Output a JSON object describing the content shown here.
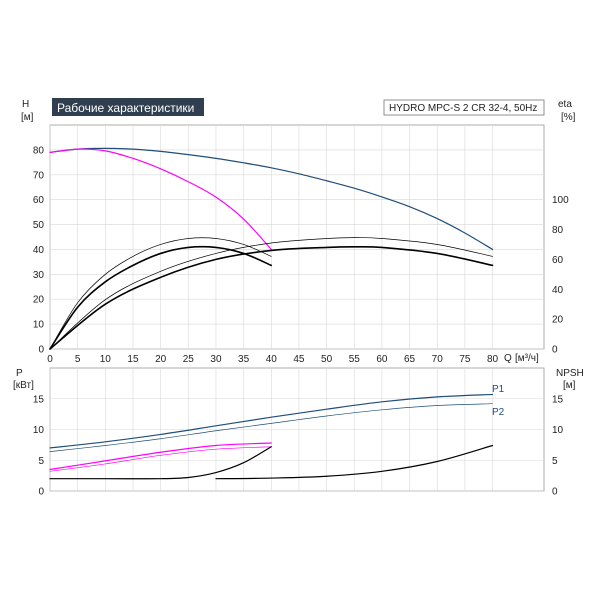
{
  "header": {
    "title": "Рабочие характеристики",
    "product": "HYDRO MPC-S 2 CR 32-4, 50Hz"
  },
  "chart_data": [
    {
      "type": "line",
      "panel": "head-efficiency",
      "x_label": "Q",
      "x_unit": "[м³/ч]",
      "x_ticks": [
        0,
        5,
        10,
        15,
        20,
        25,
        30,
        35,
        40,
        45,
        50,
        55,
        60,
        65,
        70,
        75,
        80
      ],
      "xlim": [
        0,
        80
      ],
      "y_left_label": "H",
      "y_left_unit": "[м]",
      "y_left_ticks": [
        0,
        10,
        20,
        30,
        40,
        50,
        60,
        70,
        80
      ],
      "y_left_lim": [
        0,
        90
      ],
      "y_right_label": "eta",
      "y_right_unit": "[%]",
      "y_right_ticks": [
        0,
        20,
        40,
        60,
        80,
        100
      ],
      "y_right_lim": [
        0,
        150
      ],
      "grid": true,
      "series": [
        {
          "axis": "left",
          "color": "#1f4e79",
          "width": 1.2,
          "x": [
            0,
            5,
            10,
            15,
            20,
            25,
            30,
            35,
            40,
            45,
            50,
            55,
            60,
            65,
            70,
            75,
            80
          ],
          "y": [
            79,
            80.3,
            80.6,
            80.3,
            79.4,
            78.1,
            76.6,
            74.8,
            72.8,
            70.4,
            67.6,
            64.6,
            61.1,
            57.2,
            52.4,
            46.6,
            40
          ]
        },
        {
          "axis": "left",
          "color": "#ff00ff",
          "width": 1.2,
          "x": [
            0,
            5,
            10,
            15,
            20,
            25,
            30,
            35,
            40
          ],
          "y": [
            79,
            80.3,
            79.6,
            76.6,
            72.4,
            67.2,
            61,
            52.2,
            40
          ]
        },
        {
          "axis": "right",
          "color": "#000000",
          "width": 1.6,
          "x": [
            0,
            5,
            10,
            15,
            20,
            25,
            30,
            35,
            40
          ],
          "y": [
            0,
            28,
            45,
            56,
            64,
            68,
            68,
            64,
            56
          ]
        },
        {
          "axis": "right",
          "color": "#000000",
          "width": 0.7,
          "x": [
            0,
            5,
            10,
            15,
            20,
            25,
            30,
            35,
            40
          ],
          "y": [
            0,
            31,
            50,
            62,
            70,
            74,
            74,
            70,
            62
          ]
        },
        {
          "axis": "right",
          "color": "#000000",
          "width": 1.6,
          "x": [
            0,
            10,
            20,
            30,
            40,
            50,
            55,
            60,
            70,
            80
          ],
          "y": [
            0,
            30,
            48,
            60,
            66,
            68,
            68.4,
            68,
            64,
            56
          ]
        },
        {
          "axis": "right",
          "color": "#000000",
          "width": 0.7,
          "x": [
            0,
            10,
            20,
            30,
            40,
            50,
            55,
            60,
            70,
            80
          ],
          "y": [
            0,
            33,
            52,
            64,
            71,
            74,
            74.6,
            74,
            70,
            62
          ]
        }
      ]
    },
    {
      "type": "line",
      "panel": "power-npsh",
      "y_left_label": "P",
      "y_left_unit": "[кВт]",
      "y_left_ticks": [
        0,
        5,
        10,
        15
      ],
      "y_left_lim": [
        0,
        20
      ],
      "y_right_label": "NPSH",
      "y_right_unit": "[м]",
      "y_right_ticks": [
        0,
        5,
        10,
        15
      ],
      "y_right_lim": [
        0,
        20
      ],
      "xlim": [
        0,
        80
      ],
      "grid": true,
      "series": [
        {
          "name": "P1",
          "axis": "left",
          "color": "#1f4e79",
          "width": 1.2,
          "x": [
            0,
            10,
            20,
            30,
            40,
            50,
            60,
            70,
            80
          ],
          "y": [
            7,
            8,
            9.2,
            10.6,
            12,
            13.3,
            14.5,
            15.3,
            15.7
          ]
        },
        {
          "name": "P2",
          "axis": "left",
          "color": "#1f4e79",
          "width": 0.7,
          "x": [
            0,
            10,
            20,
            30,
            40,
            50,
            60,
            70,
            80
          ],
          "y": [
            6.4,
            7.4,
            8.5,
            9.8,
            11,
            12.2,
            13.2,
            13.9,
            14.2
          ]
        },
        {
          "axis": "left",
          "color": "#ff00ff",
          "width": 1.2,
          "x": [
            0,
            10,
            20,
            30,
            40
          ],
          "y": [
            3.5,
            4.9,
            6.3,
            7.4,
            7.8
          ]
        },
        {
          "axis": "left",
          "color": "#ff00ff",
          "width": 0.7,
          "x": [
            0,
            10,
            20,
            30,
            40
          ],
          "y": [
            3.2,
            4.4,
            5.8,
            6.8,
            7.2
          ]
        },
        {
          "axis": "right",
          "color": "#000000",
          "width": 1.2,
          "x": [
            0,
            10,
            20,
            25,
            30,
            35,
            40
          ],
          "y": [
            2,
            2,
            2,
            2.2,
            3,
            4.6,
            7.2
          ]
        },
        {
          "axis": "right",
          "color": "#000000",
          "width": 1.2,
          "x": [
            30,
            40,
            50,
            60,
            70,
            80
          ],
          "y": [
            2,
            2.1,
            2.4,
            3.2,
            4.8,
            7.4
          ]
        }
      ]
    }
  ]
}
